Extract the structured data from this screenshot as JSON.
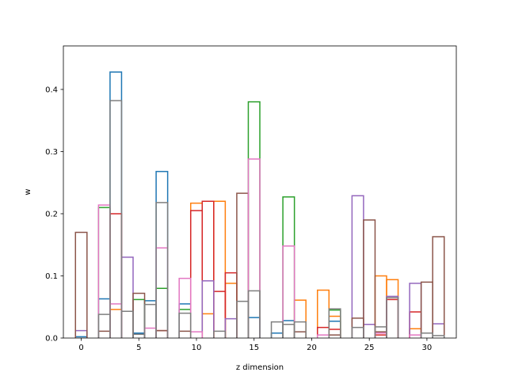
{
  "chart_data": {
    "type": "step-histogram",
    "xlabel": "z dimension",
    "ylabel": "w",
    "xlim": [
      -1.55,
      32.55
    ],
    "ylim": [
      0,
      0.47
    ],
    "x_ticks": [
      0,
      5,
      10,
      15,
      20,
      25,
      30
    ],
    "y_ticks": [
      0.0,
      0.1,
      0.2,
      0.3,
      0.4
    ],
    "grid": false,
    "series": [
      {
        "color": "#1f77b4",
        "bins": [
          {
            "x": 0,
            "y": 0.002
          },
          {
            "x": 2,
            "y": 0.063
          },
          {
            "x": 3,
            "y": 0.428
          },
          {
            "x": 5,
            "y": 0.008
          },
          {
            "x": 6,
            "y": 0.06
          },
          {
            "x": 7,
            "y": 0.268
          },
          {
            "x": 9,
            "y": 0.055
          },
          {
            "x": 15,
            "y": 0.033
          },
          {
            "x": 17,
            "y": 0.008
          },
          {
            "x": 18,
            "y": 0.028
          },
          {
            "x": 22,
            "y": 0.027
          }
        ]
      },
      {
        "color": "#ff7f0e",
        "bins": [
          {
            "x": 3,
            "y": 0.046
          },
          {
            "x": 10,
            "y": 0.217
          },
          {
            "x": 11,
            "y": 0.039
          },
          {
            "x": 12,
            "y": 0.22
          },
          {
            "x": 13,
            "y": 0.088
          },
          {
            "x": 19,
            "y": 0.061
          },
          {
            "x": 21,
            "y": 0.077
          },
          {
            "x": 22,
            "y": 0.035
          },
          {
            "x": 26,
            "y": 0.1
          },
          {
            "x": 27,
            "y": 0.094
          },
          {
            "x": 29,
            "y": 0.015
          }
        ]
      },
      {
        "color": "#2ca02c",
        "bins": [
          {
            "x": 2,
            "y": 0.21
          },
          {
            "x": 5,
            "y": 0.062
          },
          {
            "x": 7,
            "y": 0.08
          },
          {
            "x": 9,
            "y": 0.046
          },
          {
            "x": 15,
            "y": 0.38
          },
          {
            "x": 18,
            "y": 0.227
          },
          {
            "x": 22,
            "y": 0.045
          }
        ]
      },
      {
        "color": "#d62728",
        "bins": [
          {
            "x": 3,
            "y": 0.2
          },
          {
            "x": 7,
            "y": 0.012
          },
          {
            "x": 10,
            "y": 0.205
          },
          {
            "x": 11,
            "y": 0.22
          },
          {
            "x": 12,
            "y": 0.075
          },
          {
            "x": 13,
            "y": 0.105
          },
          {
            "x": 21,
            "y": 0.017
          },
          {
            "x": 22,
            "y": 0.014
          },
          {
            "x": 26,
            "y": 0.005
          },
          {
            "x": 27,
            "y": 0.062
          },
          {
            "x": 29,
            "y": 0.042
          }
        ]
      },
      {
        "color": "#9467bd",
        "bins": [
          {
            "x": 0,
            "y": 0.012
          },
          {
            "x": 4,
            "y": 0.13
          },
          {
            "x": 11,
            "y": 0.092
          },
          {
            "x": 13,
            "y": 0.031
          },
          {
            "x": 24,
            "y": 0.229
          },
          {
            "x": 25,
            "y": 0.022
          },
          {
            "x": 27,
            "y": 0.067
          },
          {
            "x": 29,
            "y": 0.088
          },
          {
            "x": 31,
            "y": 0.023
          }
        ]
      },
      {
        "color": "#8c564b",
        "bins": [
          {
            "x": 0,
            "y": 0.17
          },
          {
            "x": 2,
            "y": 0.011
          },
          {
            "x": 5,
            "y": 0.072
          },
          {
            "x": 7,
            "y": 0.012
          },
          {
            "x": 9,
            "y": 0.011
          },
          {
            "x": 14,
            "y": 0.233
          },
          {
            "x": 19,
            "y": 0.01
          },
          {
            "x": 22,
            "y": 0.005
          },
          {
            "x": 24,
            "y": 0.032
          },
          {
            "x": 25,
            "y": 0.19
          },
          {
            "x": 26,
            "y": 0.01
          },
          {
            "x": 30,
            "y": 0.09
          },
          {
            "x": 31,
            "y": 0.163
          }
        ]
      },
      {
        "color": "#e377c2",
        "bins": [
          {
            "x": 2,
            "y": 0.214
          },
          {
            "x": 3,
            "y": 0.055
          },
          {
            "x": 6,
            "y": 0.016
          },
          {
            "x": 7,
            "y": 0.145
          },
          {
            "x": 9,
            "y": 0.096
          },
          {
            "x": 10,
            "y": 0.01
          },
          {
            "x": 15,
            "y": 0.288
          },
          {
            "x": 18,
            "y": 0.148
          },
          {
            "x": 21,
            "y": 0.005
          },
          {
            "x": 26,
            "y": 0.008
          },
          {
            "x": 29,
            "y": 0.005
          }
        ]
      },
      {
        "color": "#7f7f7f",
        "bins": [
          {
            "x": 2,
            "y": 0.038
          },
          {
            "x": 3,
            "y": 0.382
          },
          {
            "x": 4,
            "y": 0.043
          },
          {
            "x": 5,
            "y": 0.006
          },
          {
            "x": 6,
            "y": 0.054
          },
          {
            "x": 7,
            "y": 0.218
          },
          {
            "x": 9,
            "y": 0.04
          },
          {
            "x": 12,
            "y": 0.011
          },
          {
            "x": 14,
            "y": 0.059
          },
          {
            "x": 15,
            "y": 0.076
          },
          {
            "x": 17,
            "y": 0.026
          },
          {
            "x": 18,
            "y": 0.022
          },
          {
            "x": 19,
            "y": 0.026
          },
          {
            "x": 22,
            "y": 0.047
          },
          {
            "x": 24,
            "y": 0.017
          },
          {
            "x": 26,
            "y": 0.018
          },
          {
            "x": 27,
            "y": 0.065
          },
          {
            "x": 30,
            "y": 0.008
          },
          {
            "x": 31,
            "y": 0.004
          }
        ]
      }
    ]
  }
}
